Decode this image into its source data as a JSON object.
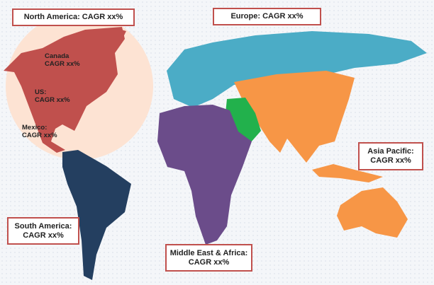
{
  "colors": {
    "north_america": "#c0504d",
    "north_america_highlight": "#fde3d3",
    "europe": "#4bacc6",
    "asia_pacific": "#f79646",
    "middle_east": "#22b14c",
    "africa": "#6b4c8a",
    "south_america": "#243f60",
    "label_border": "#c0504d"
  },
  "regions": {
    "north_america": {
      "title": "North America: CAGR xx%"
    },
    "europe": {
      "title": "Europe: CAGR xx%"
    },
    "asia_pacific": {
      "line1": "Asia Pacific:",
      "line2": "CAGR xx%"
    },
    "south_america": {
      "line1": "South America:",
      "line2": "CAGR xx%"
    },
    "mea": {
      "line1": "Middle East & Africa:",
      "line2": "CAGR xx%"
    }
  },
  "countries": {
    "canada": {
      "line1": "Canada",
      "line2": "CAGR  xx%"
    },
    "us": {
      "line1": "US:",
      "line2": "CAGR  xx%"
    },
    "mexico": {
      "line1": "Mexico:",
      "line2": "CAGR xx%"
    }
  }
}
